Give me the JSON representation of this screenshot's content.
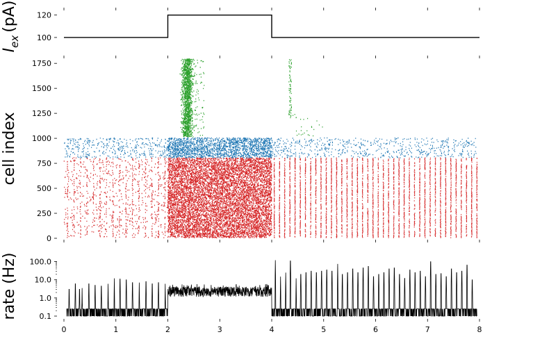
{
  "chart_data": [
    {
      "type": "line",
      "ylabel_main": "I",
      "ylabel_sub": "ex",
      "ylabel_unit": "(pA)",
      "xlim": [
        0,
        8
      ],
      "ylim": [
        95,
        126
      ],
      "yticks": [
        "100",
        "120"
      ],
      "ytick_values": [
        100,
        120
      ],
      "series": [
        {
          "x": [
            0.0,
            2.0,
            2.0,
            4.0,
            4.0,
            8.0
          ],
          "y": [
            100,
            100,
            120,
            120,
            100,
            100
          ],
          "color": "#000000"
        }
      ]
    },
    {
      "type": "scatter",
      "ylabel": "cell index",
      "xlim": [
        0,
        8
      ],
      "ylim": [
        0,
        1800
      ],
      "yticks": [
        "0",
        "250",
        "500",
        "750",
        "1000",
        "1250",
        "1500",
        "1750"
      ],
      "ytick_values": [
        0,
        250,
        500,
        750,
        1000,
        1250,
        1500,
        1750
      ],
      "populations": [
        {
          "cells": [
            0,
            800
          ],
          "color": "#d62728",
          "baseline_rate_pre": 0.2,
          "baseline_rate_stim": 5.0,
          "baseline_rate_post": 0.2,
          "pre_burst_period": 0.125,
          "post_burst_period": 0.1,
          "stim": [
            2.0,
            4.0
          ]
        },
        {
          "cells": [
            800,
            1000
          ],
          "color": "#1f77b4",
          "baseline_rate_pre": 0.05,
          "baseline_rate_stim": 3.0,
          "baseline_rate_post": 0.05
        },
        {
          "cells": [
            1000,
            1800
          ],
          "color": "#2ca02c",
          "burst": [
            2.3,
            2.45
          ],
          "tail": [
            2.45,
            2.7
          ],
          "late_burst": [
            4.33,
            4.37
          ]
        }
      ]
    },
    {
      "type": "line",
      "ylabel": "rate (Hz)",
      "yscale": "log",
      "xlim": [
        0,
        8
      ],
      "ylim": [
        0.1,
        150
      ],
      "yticks": [
        "0.1",
        "1.0",
        "10.0",
        "100.0"
      ],
      "ytick_values": [
        0.1,
        1,
        10,
        100
      ],
      "xticks": [
        "0",
        "1",
        "2",
        "3",
        "4",
        "5",
        "6",
        "7",
        "8"
      ],
      "xtick_values": [
        0,
        1,
        2,
        3,
        4,
        5,
        6,
        7,
        8
      ],
      "color": "#000000"
    }
  ]
}
